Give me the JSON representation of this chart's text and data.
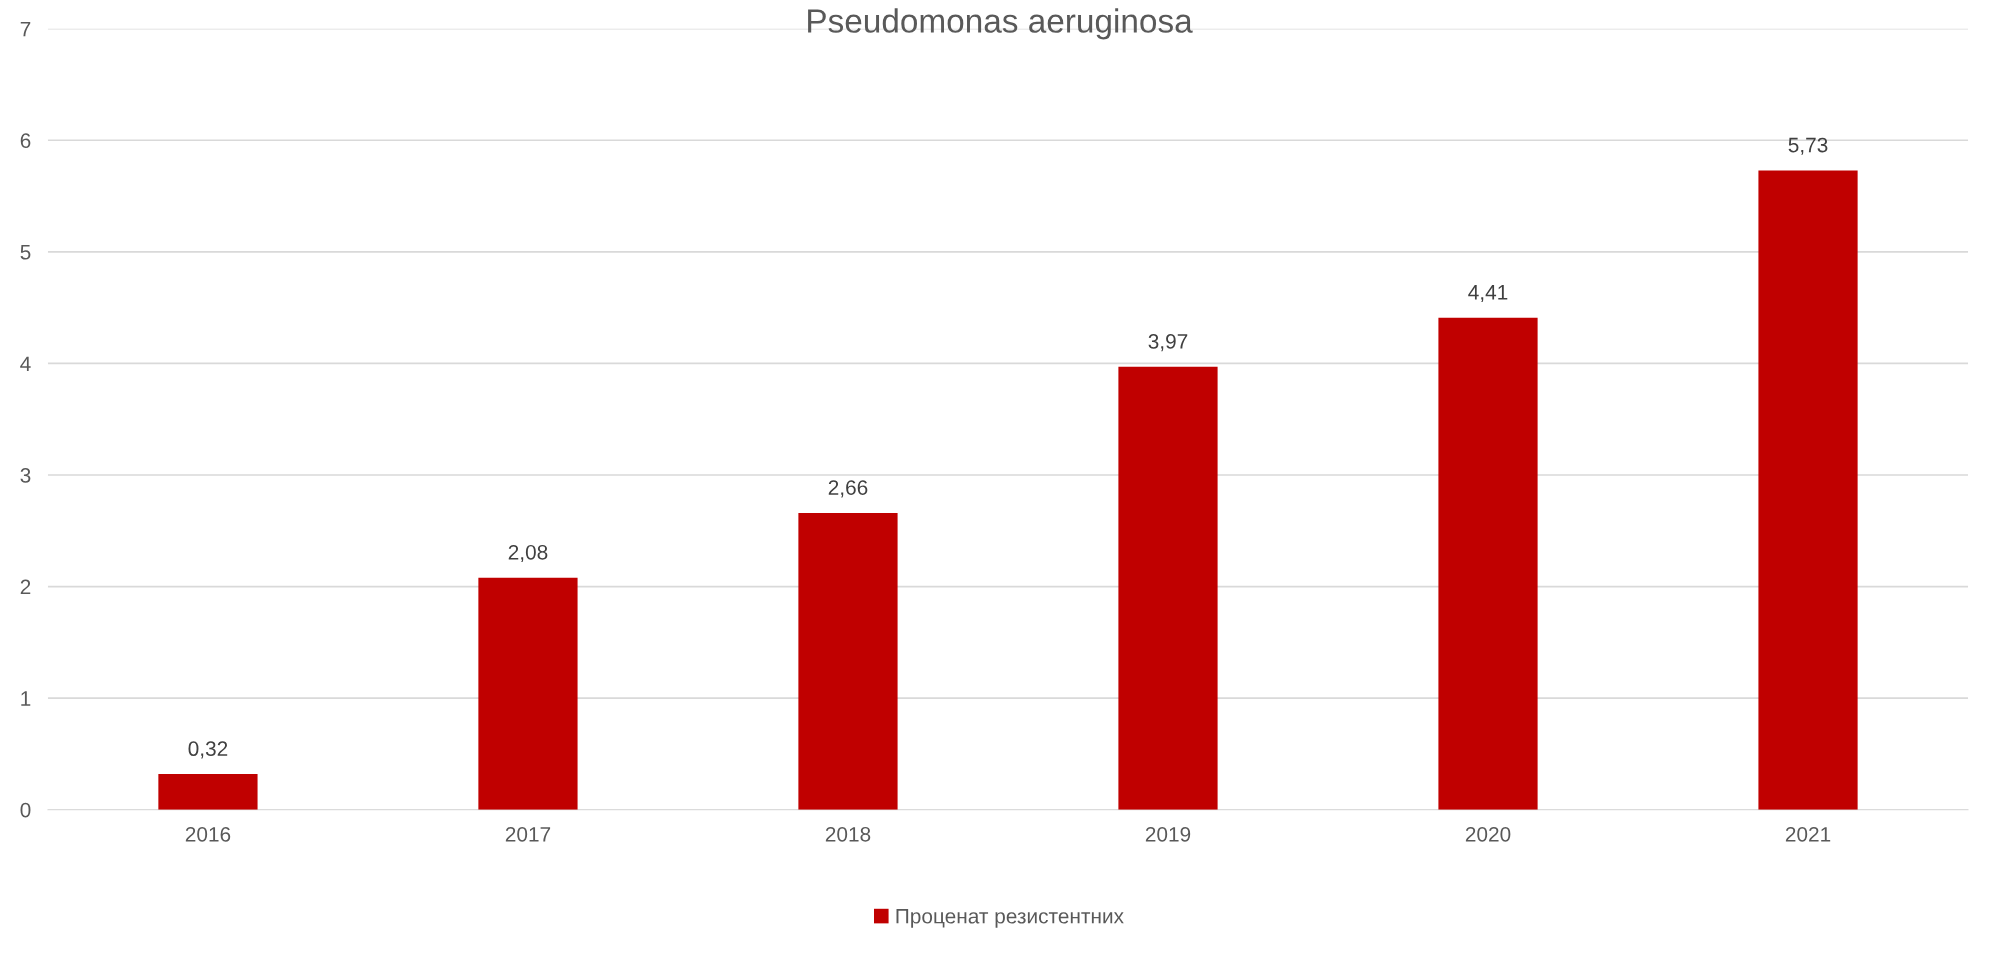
{
  "chart_data": {
    "type": "bar",
    "title": "Pseudomonas aeruginosa",
    "categories": [
      "2016",
      "2017",
      "2018",
      "2019",
      "2020",
      "2021"
    ],
    "series": [
      {
        "name": "Проценат резистентних",
        "color": "#c00000",
        "values": [
          0.32,
          2.08,
          2.66,
          3.97,
          4.41,
          5.73
        ],
        "value_labels": [
          "0,32",
          "2,08",
          "2,66",
          "3,97",
          "4,41",
          "5,73"
        ]
      }
    ],
    "ylim": [
      0,
      7
    ],
    "yticks": [
      0,
      1,
      2,
      3,
      4,
      5,
      6,
      7
    ],
    "grid": "y",
    "legend": "bottom"
  }
}
